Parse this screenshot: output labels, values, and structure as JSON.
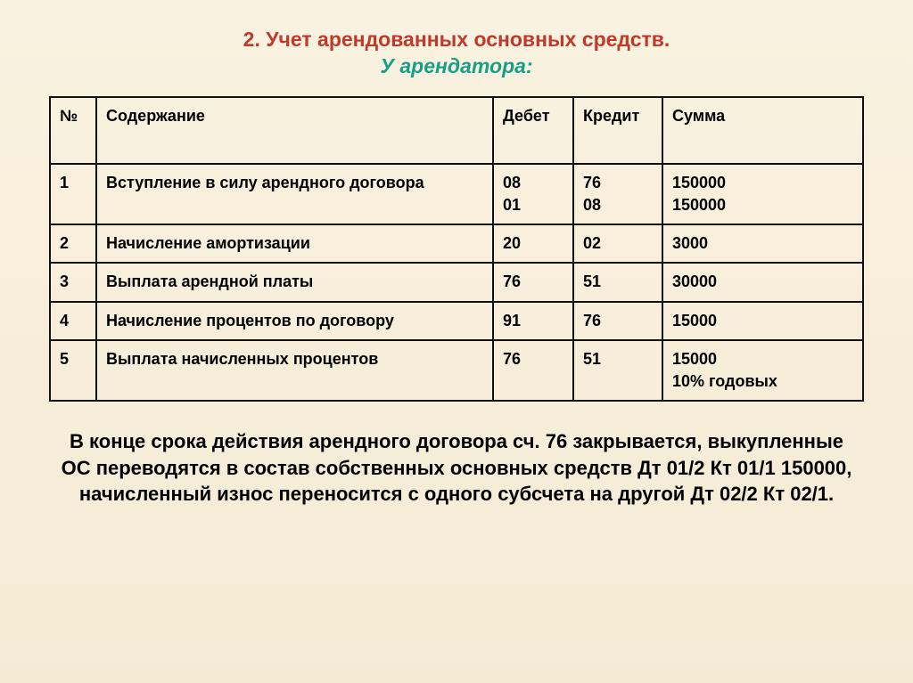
{
  "title": {
    "main": "2. Учет арендованных основных средств.",
    "sub": "У арендатора:"
  },
  "table": {
    "headers": {
      "num": "№",
      "desc": "Содержание",
      "debit": "Дебет",
      "credit": "Кредит",
      "sum": "Сумма"
    },
    "rows": [
      {
        "num": "1",
        "desc": "Вступление в силу арендного договора",
        "debit": "08\n01",
        "credit": "76\n08",
        "sum": "150000\n150000"
      },
      {
        "num": "2",
        "desc": "Начисление амортизации",
        "debit": "20",
        "credit": "02",
        "sum": "3000"
      },
      {
        "num": "3",
        "desc": "Выплата арендной платы",
        "debit": "76",
        "credit": "51",
        "sum": "30000"
      },
      {
        "num": "4",
        "desc": "Начисление процентов по договору",
        "debit": "91",
        "credit": "76",
        "sum": "15000"
      },
      {
        "num": "5",
        "desc": "Выплата начисленных процентов",
        "debit": "76",
        "credit": "51",
        "sum": "15000\n10% годовых"
      }
    ]
  },
  "footer": "В конце срока действия арендного договора сч. 76 закрывается, выкупленные ОС переводятся в состав собственных основных средств  Дт 01/2   Кт 01/1  150000, начисленный износ переносится с одного субсчета на другой Дт 02/2  Кт 02/1."
}
